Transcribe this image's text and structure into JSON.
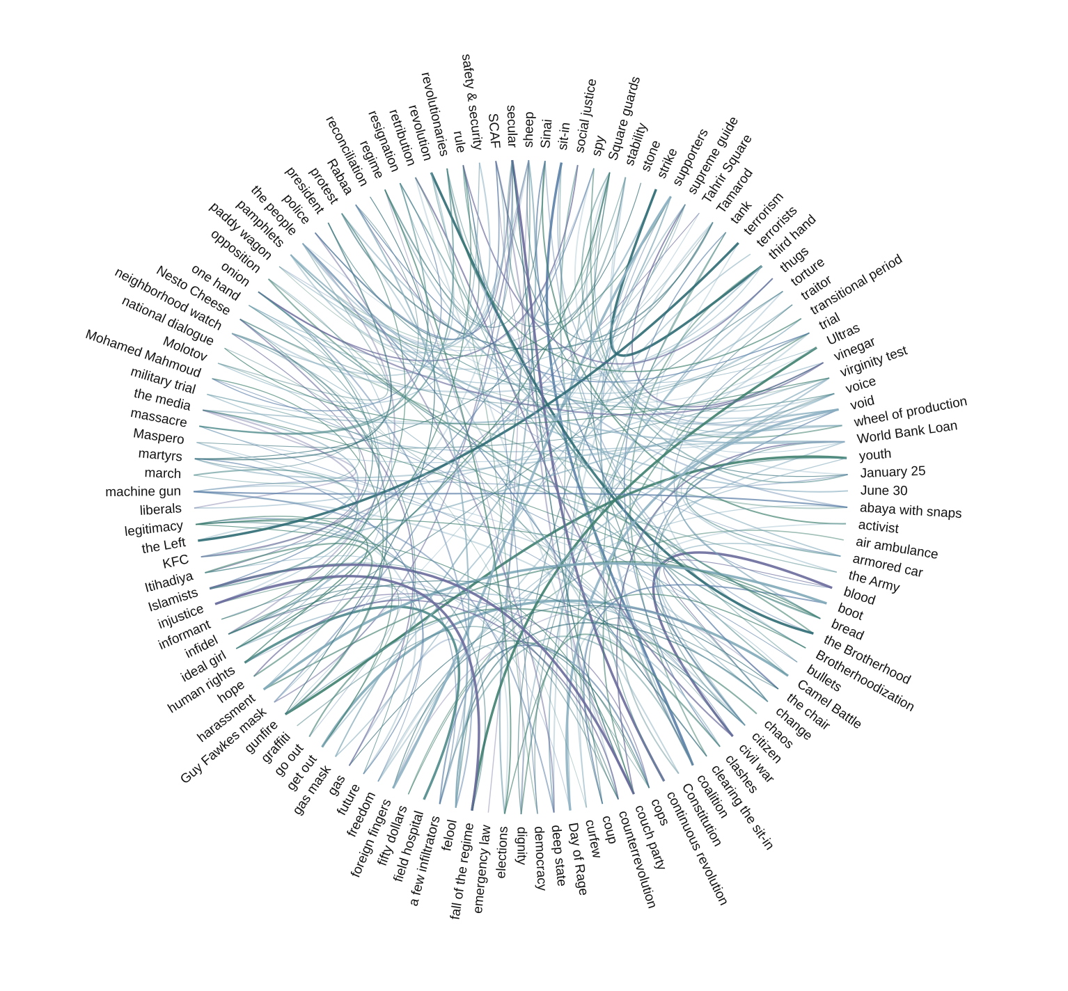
{
  "nodes": [
    "secular",
    "sheep",
    "Sinai",
    "sit-in",
    "social justice",
    "spy",
    "Square guards",
    "stability",
    "stone",
    "strike",
    "supporters",
    "supreme guide",
    "Tahrir Square",
    "Tamarod",
    "tank",
    "terrorism",
    "terrorists",
    "third hand",
    "thugs",
    "torture",
    "traitor",
    "transitional period",
    "trial",
    "Ultras",
    "vinegar",
    "virginity test",
    "voice",
    "void",
    "wheel of production",
    "World Bank Loan",
    "youth",
    "January 25",
    "June 30",
    "abaya with snaps",
    "activist",
    "air ambulance",
    "armored car",
    "the Army",
    "blood",
    "boot",
    "bread",
    "the Brotherhood",
    "Brotherhoodization",
    "bullets",
    "Camel Battle",
    "the chair",
    "change",
    "chaos",
    "citizen",
    "civil war",
    "clashes",
    "clearing the sit-in",
    "coalition",
    "Constitution",
    "continuous revolution",
    "cops",
    "couch party",
    "counterrevolution",
    "coup",
    "curfew",
    "Day of Rage",
    "deep state",
    "democracy",
    "dignity",
    "elections",
    "emergency law",
    "fall of the regime",
    "felool",
    "a few infiltrators",
    "field hospital",
    "fifty dollars",
    "foreign fingers",
    "freedom",
    "future",
    "gas",
    "gas mask",
    "get out",
    "go out",
    "graffiti",
    "gunfire",
    "Guy Fawkes mask",
    "harassment",
    "hope",
    "human rights",
    "ideal girl",
    "infidel",
    "informant",
    "injustice",
    "Islamists",
    "Itihadiya",
    "KFC",
    "the Left",
    "legitimacy",
    "liberals",
    "machine gun",
    "march",
    "martyrs",
    "Maspero",
    "massacre",
    "the media",
    "military trial",
    "Mohamed Mahmoud",
    "Molotov",
    "national dialogue",
    "neighborhood watch",
    "Nesto Cheese",
    "one hand",
    "onion",
    "opposition",
    "paddy wagon",
    "pamphlets",
    "the people",
    "police",
    "president",
    "protest",
    "Rabaa",
    "reconciliation",
    "regime",
    "resignation",
    "retribution",
    "revolution",
    "revolutionaries",
    "rule",
    "safety & security",
    "SCAF"
  ]
}
